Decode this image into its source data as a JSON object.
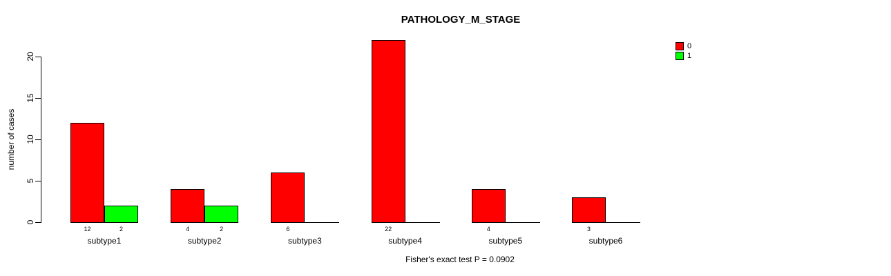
{
  "chart_data": {
    "type": "bar",
    "title": "PATHOLOGY_M_STAGE",
    "ylabel": "number of cases",
    "xlabel": "",
    "categories": [
      "subtype1",
      "subtype2",
      "subtype3",
      "subtype4",
      "subtype5",
      "subtype6"
    ],
    "series": [
      {
        "name": "0",
        "color": "#FF0000",
        "values": [
          12,
          4,
          6,
          22,
          4,
          3
        ]
      },
      {
        "name": "1",
        "color": "#00FF00",
        "values": [
          2,
          2,
          0,
          0,
          0,
          0
        ]
      }
    ],
    "value_labels_shown": [
      [
        "12",
        "2"
      ],
      [
        "4",
        "2"
      ],
      [
        "6"
      ],
      [
        "22"
      ],
      [
        "4"
      ],
      [
        "3"
      ]
    ],
    "yticks": [
      0,
      5,
      10,
      15,
      20
    ],
    "ylim": [
      0,
      20
    ],
    "grid": false,
    "legend_position": "top-right",
    "annotation": "Fisher's exact test P = 0.0902"
  },
  "legend": {
    "items": [
      {
        "label": "0",
        "color": "#FF0000"
      },
      {
        "label": "1",
        "color": "#00FF00"
      }
    ]
  },
  "colors": {
    "series0": "#FF0000",
    "series1": "#00FF00",
    "axis": "#000000",
    "background": "#FFFFFF",
    "text": "#000000"
  }
}
